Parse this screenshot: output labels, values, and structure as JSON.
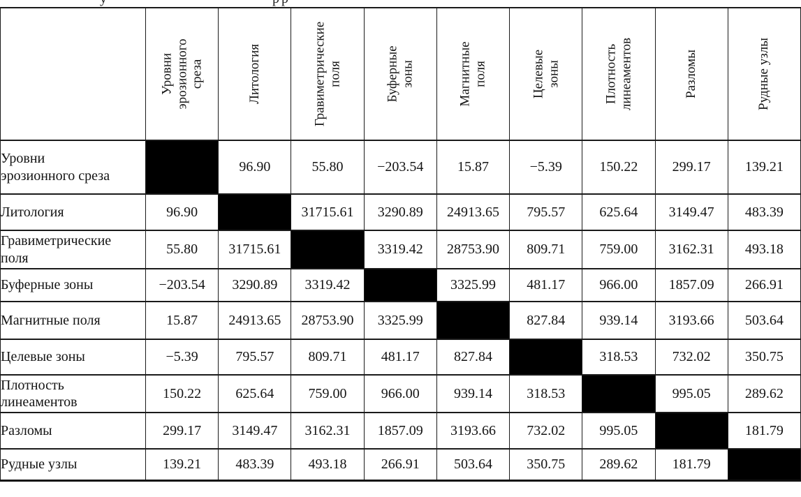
{
  "page": {
    "background": "#ffffff",
    "text_color": "#141414",
    "rule_color": "#1a1a1a",
    "diagonal_fill": "#000000"
  },
  "cropped_caption_remnant": {
    "fragment_left": "у",
    "fragment_right": "рр"
  },
  "matrix_table": {
    "corner_label": "",
    "columns": [
      {
        "label": "Уровни эрозионного среза",
        "lines": [
          "Уровни",
          "эрозионного",
          "среза"
        ]
      },
      {
        "label": "Литология",
        "lines": [
          "Литология"
        ]
      },
      {
        "label": "Гравиметрические поля",
        "lines": [
          "Гравиметрические",
          "поля"
        ]
      },
      {
        "label": "Буферные зоны",
        "lines": [
          "Буферные",
          "зоны"
        ]
      },
      {
        "label": "Магнитные поля",
        "lines": [
          "Магнитные",
          "поля"
        ]
      },
      {
        "label": "Целевые зоны",
        "lines": [
          "Целевые",
          "зоны"
        ]
      },
      {
        "label": "Плотность линеаментов",
        "lines": [
          "Плотность",
          "линеаментов"
        ]
      },
      {
        "label": "Разломы",
        "lines": [
          "Разломы"
        ]
      },
      {
        "label": "Рудные узлы",
        "lines": [
          "Рудные узлы"
        ]
      }
    ],
    "rows": [
      {
        "label": "Уровни эрозионного среза",
        "lines": [
          "Уровни",
          "эрозионного среза"
        ],
        "values": [
          null,
          "96.90",
          "55.80",
          "−203.54",
          "15.87",
          "−5.39",
          "150.22",
          "299.17",
          "139.21"
        ]
      },
      {
        "label": "Литология",
        "lines": [
          "Литология"
        ],
        "values": [
          "96.90",
          null,
          "31715.61",
          "3290.89",
          "24913.65",
          "795.57",
          "625.64",
          "3149.47",
          "483.39"
        ]
      },
      {
        "label": "Гравиметрические поля",
        "lines": [
          "Гравиметрические",
          "поля"
        ],
        "values": [
          "55.80",
          "31715.61",
          null,
          "3319.42",
          "28753.90",
          "809.71",
          "759.00",
          "3162.31",
          "493.18"
        ]
      },
      {
        "label": "Буферные зоны",
        "lines": [
          "Буферные зоны"
        ],
        "values": [
          "−203.54",
          "3290.89",
          "3319.42",
          null,
          "3325.99",
          "481.17",
          "966.00",
          "1857.09",
          "266.91"
        ]
      },
      {
        "label": "Магнитные поля",
        "lines": [
          "Магнитные поля"
        ],
        "values": [
          "15.87",
          "24913.65",
          "28753.90",
          "3325.99",
          null,
          "827.84",
          "939.14",
          "3193.66",
          "503.64"
        ]
      },
      {
        "label": "Целевые зоны",
        "lines": [
          "Целевые зоны"
        ],
        "values": [
          "−5.39",
          "795.57",
          "809.71",
          "481.17",
          "827.84",
          null,
          "318.53",
          "732.02",
          "350.75"
        ]
      },
      {
        "label": "Плотность линеаментов",
        "lines": [
          "Плотность",
          "линеаментов"
        ],
        "values": [
          "150.22",
          "625.64",
          "759.00",
          "966.00",
          "939.14",
          "318.53",
          null,
          "995.05",
          "289.62"
        ]
      },
      {
        "label": "Разломы",
        "lines": [
          "Разломы"
        ],
        "values": [
          "299.17",
          "3149.47",
          "3162.31",
          "1857.09",
          "3193.66",
          "732.02",
          "995.05",
          null,
          "181.79"
        ]
      },
      {
        "label": "Рудные узлы",
        "lines": [
          "Рудные узлы"
        ],
        "values": [
          "139.21",
          "483.39",
          "493.18",
          "266.91",
          "503.64",
          "350.75",
          "289.62",
          "181.79",
          null
        ]
      }
    ]
  }
}
